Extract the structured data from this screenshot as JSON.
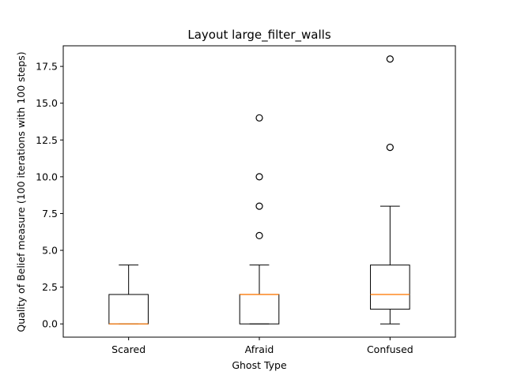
{
  "chart_data": {
    "type": "boxplot",
    "title": "Layout large_filter_walls",
    "xlabel": "Ghost Type",
    "ylabel": "Quality of Belief measure (100 iterations with 100 steps)",
    "ylim": [
      -0.9,
      18.9
    ],
    "yticks": [
      0.0,
      2.5,
      5.0,
      7.5,
      10.0,
      12.5,
      15.0,
      17.5
    ],
    "ytick_labels": [
      "0.0",
      "2.5",
      "5.0",
      "7.5",
      "10.0",
      "12.5",
      "15.0",
      "17.5"
    ],
    "categories": [
      "Scared",
      "Afraid",
      "Confused"
    ],
    "boxes": [
      {
        "name": "Scared",
        "whisker_low": 0,
        "q1": 0,
        "median": 0,
        "q3": 2,
        "whisker_high": 4,
        "outliers": []
      },
      {
        "name": "Afraid",
        "whisker_low": 0,
        "q1": 0,
        "median": 2,
        "q3": 2,
        "whisker_high": 4,
        "outliers": [
          6,
          8,
          10,
          14
        ]
      },
      {
        "name": "Confused",
        "whisker_low": 0,
        "q1": 1,
        "median": 2,
        "q3": 4,
        "whisker_high": 8,
        "outliers": [
          12,
          18
        ]
      }
    ],
    "grid": false,
    "colors": {
      "box": "#000000",
      "median": "#ff7f0e",
      "outlier": "#000000"
    }
  }
}
